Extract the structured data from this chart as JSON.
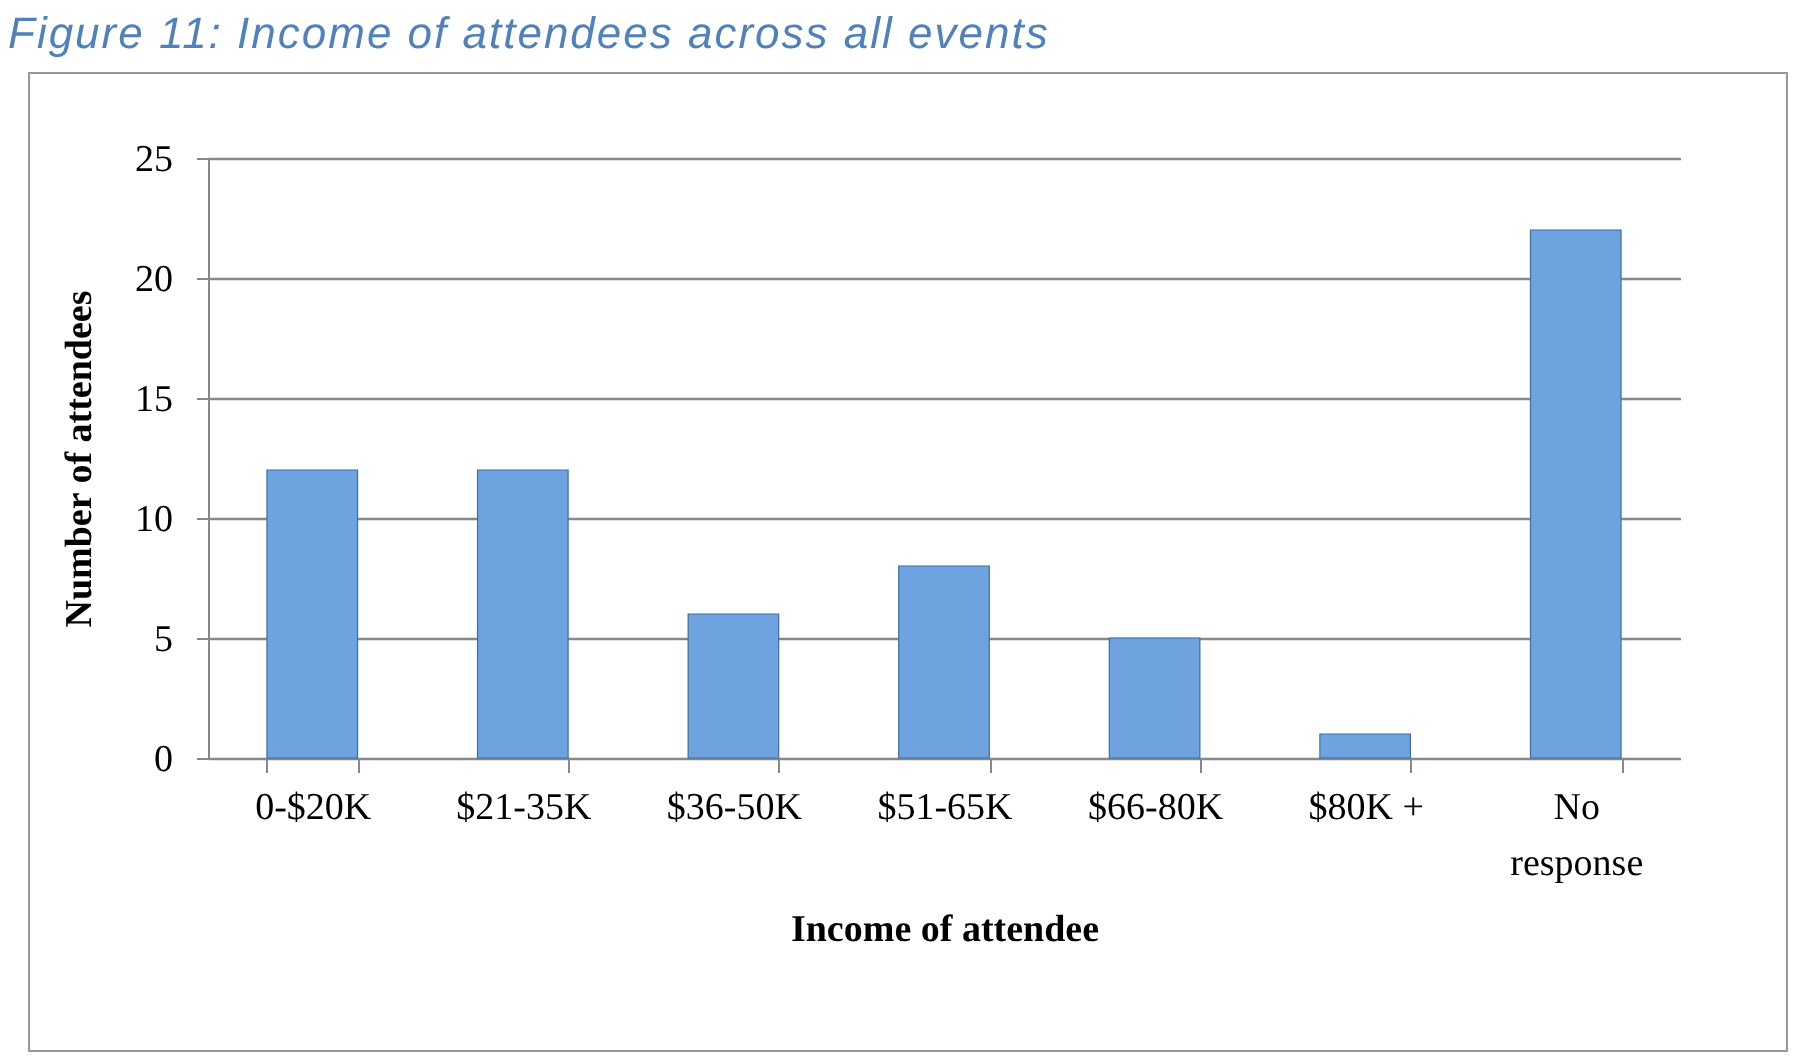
{
  "chart_data": {
    "type": "bar",
    "title": "Figure 11: Income of attendees across all events",
    "xlabel": "Income of attendee",
    "ylabel": "Number of attendees",
    "categories": [
      "0-$20K",
      "$21-35K",
      "$36-50K",
      "$51-65K",
      "$66-80K",
      "$80K +",
      "No response"
    ],
    "values": [
      12,
      12,
      6,
      8,
      5,
      1,
      22
    ],
    "color": "#6fa3e0",
    "ylim": [
      0,
      25
    ],
    "yticks": [
      0,
      5,
      10,
      15,
      20,
      25
    ],
    "grid": "y"
  }
}
